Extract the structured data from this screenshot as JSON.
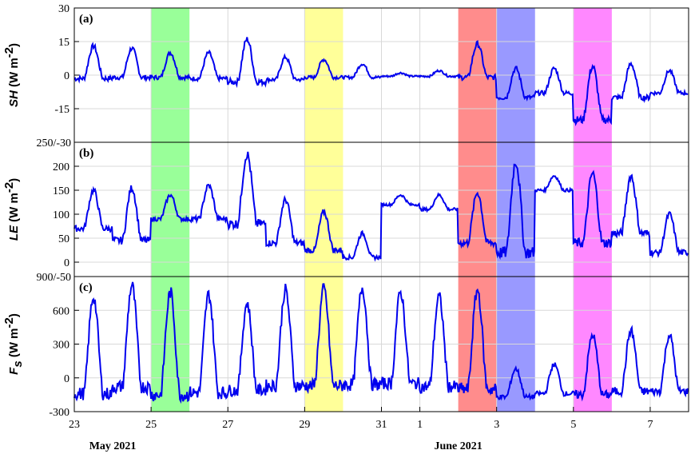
{
  "chart_data": {
    "type": "line",
    "x_axis": {
      "start": "2021-05-23",
      "end": "2021-06-08",
      "tick_labels": [
        "23",
        "25",
        "27",
        "29",
        "31",
        "1",
        "3",
        "5",
        "7"
      ],
      "tick_dates": [
        "2021-05-23",
        "2021-05-25",
        "2021-05-27",
        "2021-05-29",
        "2021-05-31",
        "2021-06-01",
        "2021-06-03",
        "2021-06-05",
        "2021-06-07"
      ],
      "month_labels": [
        {
          "text": "May 2021",
          "date": "2021-05-24"
        },
        {
          "text": "June 2021",
          "date": "2021-06-02"
        }
      ]
    },
    "shaded_periods": [
      {
        "start": "2021-05-25",
        "end": "2021-05-26",
        "color": "#99ff99"
      },
      {
        "start": "2021-05-29",
        "end": "2021-05-30",
        "color": "#ffff99"
      },
      {
        "start": "2021-06-02",
        "end": "2021-06-03",
        "color": "#ff8c8c"
      },
      {
        "start": "2021-06-03",
        "end": "2021-06-04",
        "color": "#9999ff"
      },
      {
        "start": "2021-06-05",
        "end": "2021-06-06",
        "color": "#ff88ff"
      }
    ],
    "line_color": "#0000ee",
    "panels": [
      {
        "id": "a",
        "panel_label": "(a)",
        "ylabel_italic": "SH",
        "ylabel_units": " (W m",
        "ylabel_exp": "-2",
        "ylabel_close": ")",
        "ylim": [
          -30,
          30
        ],
        "tick_values": [
          30,
          15,
          0,
          -15
        ],
        "tick_labels": [
          "30",
          "15",
          "0",
          "-15"
        ],
        "series": [
          {
            "day": 0,
            "amp": 13,
            "night": -1.5
          },
          {
            "day": 1,
            "amp": 12,
            "night": -1
          },
          {
            "day": 2,
            "amp": 10,
            "night": -1
          },
          {
            "day": 3,
            "amp": 10,
            "night": -1.5
          },
          {
            "day": 4,
            "amp": 16,
            "night": -3
          },
          {
            "day": 5,
            "amp": 8,
            "night": -2
          },
          {
            "day": 6,
            "amp": 7,
            "night": -1
          },
          {
            "day": 7,
            "amp": 5,
            "night": -1
          },
          {
            "day": 8,
            "amp": 1,
            "night": -0.5
          },
          {
            "day": 9,
            "amp": 2,
            "night": -0.5
          },
          {
            "day": 10,
            "amp": 14,
            "night": -1
          },
          {
            "day": 11,
            "amp": 3,
            "night": -10
          },
          {
            "day": 12,
            "amp": 3,
            "night": -8
          },
          {
            "day": 13,
            "amp": 4,
            "night": -20
          },
          {
            "day": 14,
            "amp": 5,
            "night": -10
          },
          {
            "day": 15,
            "amp": 2,
            "night": -8
          }
        ]
      },
      {
        "id": "b",
        "panel_label": "(b)",
        "ylabel_italic": "LE",
        "ylabel_units": " (W m",
        "ylabel_exp": "-2",
        "ylabel_close": ")",
        "ylim": [
          -30,
          250
        ],
        "tick_values": [
          200,
          150,
          100,
          50,
          0
        ],
        "tick_labels": [
          "200",
          "150",
          "100",
          "50",
          "0"
        ],
        "top_label": "250/-30",
        "series": [
          {
            "day": 0,
            "amp": 150,
            "night": 70
          },
          {
            "day": 1,
            "amp": 155,
            "night": 45
          },
          {
            "day": 2,
            "amp": 140,
            "night": 90
          },
          {
            "day": 3,
            "amp": 160,
            "night": 90
          },
          {
            "day": 4,
            "amp": 225,
            "night": 80
          },
          {
            "day": 5,
            "amp": 130,
            "night": 40
          },
          {
            "day": 6,
            "amp": 105,
            "night": 25
          },
          {
            "day": 7,
            "amp": 60,
            "night": 10
          },
          {
            "day": 8,
            "amp": 140,
            "night": 120
          },
          {
            "day": 9,
            "amp": 140,
            "night": 110
          },
          {
            "day": 10,
            "amp": 145,
            "night": 40
          },
          {
            "day": 11,
            "amp": 210,
            "night": 20
          },
          {
            "day": 12,
            "amp": 180,
            "night": 150
          },
          {
            "day": 13,
            "amp": 185,
            "night": 40
          },
          {
            "day": 14,
            "amp": 180,
            "night": 60
          },
          {
            "day": 15,
            "amp": 100,
            "night": 20
          }
        ]
      },
      {
        "id": "c",
        "panel_label": "(c)",
        "ylabel_italic": "F",
        "ylabel_sub": "s",
        "ylabel_units": " (W m",
        "ylabel_exp": "-2",
        "ylabel_close": ")",
        "ylim": [
          -300,
          900
        ],
        "tick_values": [
          600,
          300,
          0,
          -300
        ],
        "tick_labels": [
          "600",
          "300",
          "0",
          "-300"
        ],
        "top_label": "900/-50",
        "series": [
          {
            "day": 0,
            "amp": 720,
            "night": -140
          },
          {
            "day": 1,
            "amp": 820,
            "night": -80
          },
          {
            "day": 2,
            "amp": 760,
            "night": -150
          },
          {
            "day": 3,
            "amp": 740,
            "night": -130
          },
          {
            "day": 4,
            "amp": 660,
            "night": -110
          },
          {
            "day": 5,
            "amp": 780,
            "night": -70
          },
          {
            "day": 6,
            "amp": 790,
            "night": -70
          },
          {
            "day": 7,
            "amp": 800,
            "night": -60
          },
          {
            "day": 8,
            "amp": 760,
            "night": -50
          },
          {
            "day": 9,
            "amp": 720,
            "night": -80
          },
          {
            "day": 10,
            "amp": 780,
            "night": -100
          },
          {
            "day": 11,
            "amp": 80,
            "night": -170
          },
          {
            "day": 12,
            "amp": 120,
            "night": -140
          },
          {
            "day": 13,
            "amp": 380,
            "night": -150
          },
          {
            "day": 14,
            "amp": 420,
            "night": -120
          },
          {
            "day": 15,
            "amp": 380,
            "night": -120
          }
        ]
      }
    ]
  }
}
